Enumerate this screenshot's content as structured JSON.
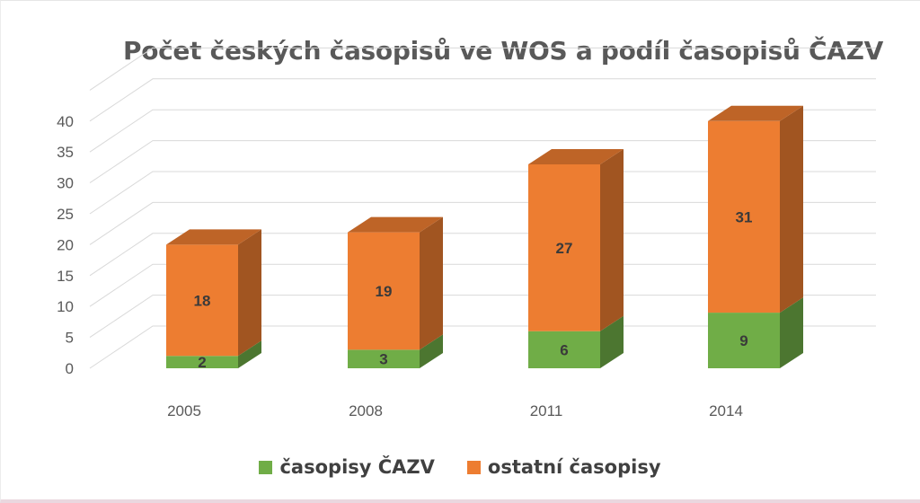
{
  "chart_data": {
    "type": "bar",
    "stacked": true,
    "three_d": true,
    "title": "Počet českých časopisů ve WOS a podíl časopisů ČAZV",
    "categories": [
      "2005",
      "2008",
      "2011",
      "2014"
    ],
    "series": [
      {
        "name": "časopisy ČAZV",
        "values": [
          2,
          3,
          6,
          9
        ],
        "color": "#70ad47"
      },
      {
        "name": "ostatní časopisy",
        "values": [
          18,
          19,
          27,
          31
        ],
        "color": "#ed7d31"
      }
    ],
    "y_ticks": [
      "0",
      "5",
      "10",
      "15",
      "20",
      "25",
      "30",
      "35",
      "40"
    ],
    "ylim": [
      0,
      45
    ],
    "grid": true,
    "legend_position": "bottom"
  }
}
